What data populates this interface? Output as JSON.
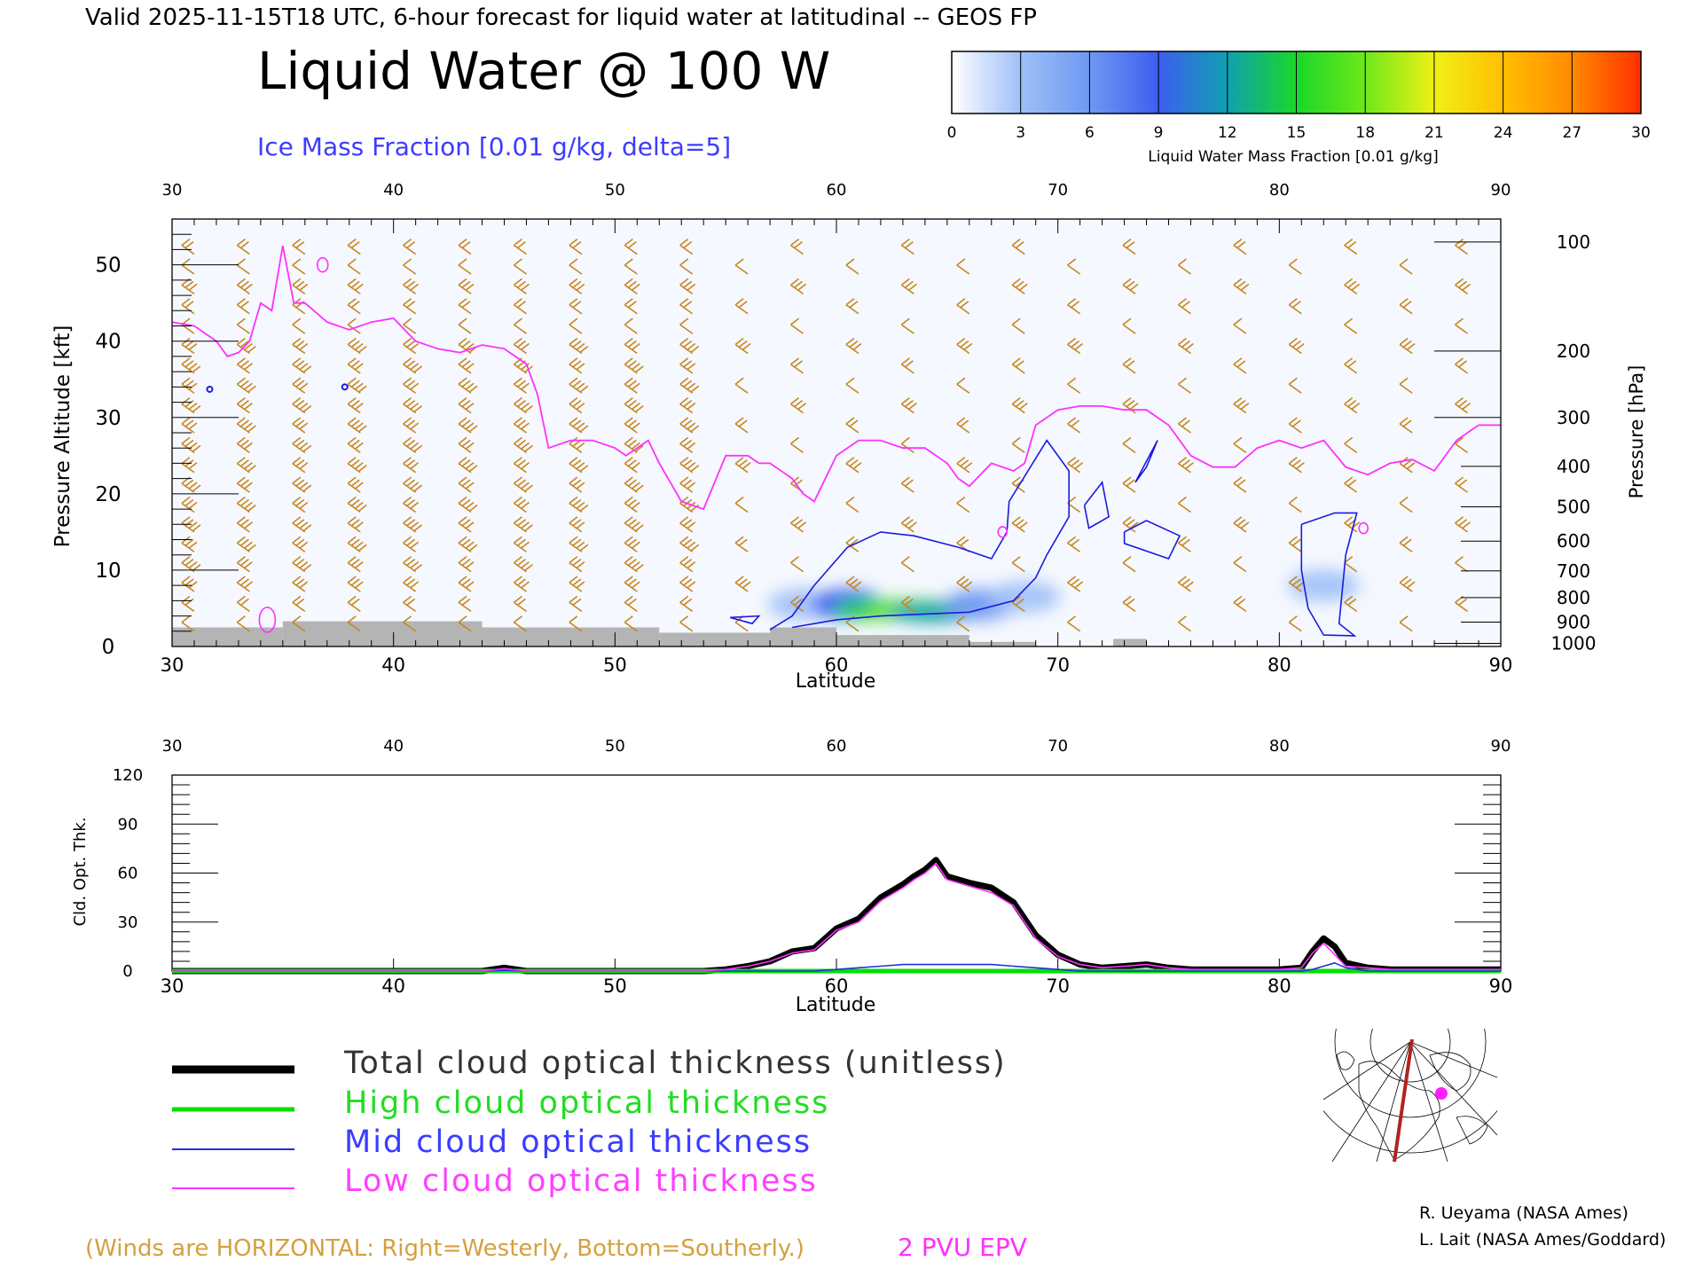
{
  "header": "Valid 2025-11-15T18 UTC, 6-hour forecast for liquid water at latitudinal -- GEOS FP",
  "title": "Liquid Water @ 100 W",
  "subtitle": "Ice Mass Fraction [0.01 g/kg, delta=5]",
  "colorbar": {
    "ticks": [
      "0",
      "3",
      "6",
      "9",
      "12",
      "15",
      "18",
      "21",
      "24",
      "27",
      "30"
    ],
    "colors": [
      "#ffffff",
      "#9ec0f8",
      "#6f98f2",
      "#3c5ef0",
      "#10a0b0",
      "#18d828",
      "#6ee81a",
      "#f0f016",
      "#ffc000",
      "#ff8a00",
      "#ff3000"
    ],
    "label": "Liquid Water Mass Fraction [0.01 g/kg]"
  },
  "chart_data": [
    {
      "type": "heatmap",
      "x_ticks_top": [
        "30",
        "40",
        "50",
        "60",
        "70",
        "80",
        "90"
      ],
      "x_ticks_bottom": [
        "30",
        "40",
        "50",
        "60",
        "70",
        "80",
        "90"
      ],
      "xlabel": "Latitude",
      "ylabel": "Pressure Altitude [kft]",
      "y_ticks": [
        "0",
        "10",
        "20",
        "30",
        "40",
        "50"
      ],
      "ylim": [
        0,
        56
      ],
      "xlim": [
        30,
        90
      ],
      "ylabel_right": "Pressure [hPa]",
      "pressure_ticks": [
        "100",
        "200",
        "300",
        "400",
        "500",
        "600",
        "700",
        "800",
        "900",
        "1000"
      ],
      "pressure_tick_altitudes_kft": [
        53,
        38.7,
        30,
        23.6,
        18.3,
        13.8,
        9.9,
        6.4,
        3.2,
        0.4
      ],
      "liquid_water_cells": [
        {
          "lat": 58.5,
          "alt": 5.5,
          "value": 3
        },
        {
          "lat": 60.5,
          "alt": 5.5,
          "value": 9
        },
        {
          "lat": 62.0,
          "alt": 4.8,
          "value": 15
        },
        {
          "lat": 63.5,
          "alt": 4.8,
          "value": 17
        },
        {
          "lat": 64.5,
          "alt": 4.5,
          "value": 12
        },
        {
          "lat": 66.5,
          "alt": 5.5,
          "value": 6
        },
        {
          "lat": 68.5,
          "alt": 6.5,
          "value": 3
        },
        {
          "lat": 82.0,
          "alt": 8.0,
          "value": 3
        }
      ],
      "epv_2pvu_line": {
        "x": [
          30,
          31,
          32,
          32.5,
          33,
          33.5,
          34,
          34.5,
          35,
          35.5,
          36,
          37,
          38,
          39,
          40,
          41,
          42,
          43,
          44,
          45,
          46,
          46.5,
          47,
          48,
          49,
          50,
          50.5,
          51,
          51.5,
          52,
          53,
          54,
          55,
          56,
          56.5,
          57,
          58,
          58.5,
          59,
          60,
          61,
          62,
          63,
          64,
          65,
          65.5,
          66,
          67,
          68,
          68.5,
          69,
          70,
          71,
          72,
          73,
          74,
          75,
          76,
          77,
          78,
          79,
          80,
          81,
          82,
          83,
          84,
          85,
          86,
          87,
          88,
          89,
          90
        ],
        "y": [
          42.5,
          42,
          40,
          38,
          38.5,
          40,
          45,
          44,
          52.5,
          45,
          45,
          42.5,
          41.5,
          42.5,
          43,
          40,
          39,
          38.5,
          39.5,
          39,
          37,
          33,
          26,
          27,
          27,
          26,
          25,
          26,
          27,
          24,
          19,
          18,
          25,
          25,
          24,
          24,
          22,
          20,
          19,
          25,
          27,
          27,
          26,
          26,
          24,
          22,
          21,
          24,
          23,
          24,
          29,
          31,
          31.5,
          31.5,
          31,
          31,
          29,
          25,
          23.5,
          23.5,
          26,
          27,
          26,
          27,
          23.5,
          22.5,
          24,
          24.5,
          23,
          27,
          29,
          29,
          32
        ]
      },
      "mid_cloud_contour_note": "Ice mass fraction contours at 0.01 g/kg",
      "terrain_alt_kft": [
        {
          "from": 30,
          "to": 35,
          "alt": 2.5
        },
        {
          "from": 35,
          "to": 44,
          "alt": 3.3
        },
        {
          "from": 44,
          "to": 52,
          "alt": 2.5
        },
        {
          "from": 52,
          "to": 57,
          "alt": 1.8
        },
        {
          "from": 57,
          "to": 60,
          "alt": 2.5
        },
        {
          "from": 60,
          "to": 66,
          "alt": 1.5
        },
        {
          "from": 66,
          "to": 69,
          "alt": 0.6
        },
        {
          "from": 72.5,
          "to": 74,
          "alt": 1.0
        }
      ],
      "winds_note": "(Winds are HORIZONTAL: Right=Westerly, Bottom=Southerly.)",
      "epv_label": "2 PVU EPV"
    },
    {
      "type": "line",
      "xlabel": "Latitude",
      "ylabel": "Cld. Opt. Thk.",
      "xlim": [
        30,
        90
      ],
      "ylim": [
        0,
        120
      ],
      "x_ticks_top": [
        "30",
        "40",
        "50",
        "60",
        "70",
        "80",
        "90"
      ],
      "x_ticks_bottom": [
        "30",
        "40",
        "50",
        "60",
        "70",
        "80",
        "90"
      ],
      "y_ticks": [
        "0",
        "30",
        "60",
        "90",
        "120"
      ],
      "x": [
        30,
        35,
        40,
        44,
        45,
        46,
        50,
        54,
        55,
        56,
        57,
        58,
        59,
        60,
        61,
        62,
        63,
        63.5,
        64,
        64.5,
        65,
        66,
        67,
        68,
        69,
        70,
        71,
        72,
        73,
        74,
        75,
        76,
        80,
        81,
        81.5,
        82,
        82.5,
        83,
        84,
        85,
        90
      ],
      "series": [
        {
          "name": "Total cloud optical thickness (unitless)",
          "color": "#000000",
          "values": [
            0,
            0,
            0,
            0,
            2,
            0,
            0,
            0,
            1,
            3,
            6,
            12,
            14,
            26,
            32,
            45,
            53,
            58,
            62,
            68,
            58,
            54,
            51,
            42,
            22,
            10,
            4,
            2,
            3,
            4,
            2,
            1,
            1,
            2,
            12,
            20,
            15,
            5,
            2,
            1,
            1
          ]
        },
        {
          "name": "High cloud optical thickness",
          "color": "#00e000",
          "values": [
            0,
            0,
            0,
            0,
            0,
            0,
            0,
            0,
            0,
            0,
            0,
            0,
            0,
            0,
            0,
            0,
            0,
            0,
            0,
            0,
            0,
            0,
            0,
            0,
            0,
            0,
            0,
            0,
            0,
            0,
            0,
            0,
            0,
            0,
            0,
            0,
            0,
            0,
            0,
            0,
            0
          ]
        },
        {
          "name": "Mid cloud optical thickness",
          "color": "#2030e0",
          "values": [
            0,
            0,
            0,
            0,
            0.5,
            0,
            0,
            0,
            0,
            0,
            0,
            0,
            0,
            1,
            2,
            3,
            4,
            4,
            4,
            4,
            4,
            4,
            4,
            3,
            2,
            1,
            0,
            0,
            0,
            0,
            0,
            0,
            0,
            0,
            1,
            3,
            5,
            2,
            0,
            0,
            0
          ]
        },
        {
          "name": "Low cloud optical thickness",
          "color": "#ff30ff",
          "values": [
            0,
            0,
            0,
            0,
            1.5,
            0,
            0,
            0,
            1,
            3,
            6,
            11,
            13,
            25,
            30,
            43,
            51,
            56,
            60,
            66,
            56,
            52,
            48,
            40,
            20,
            9,
            4,
            2,
            3,
            4,
            2,
            1,
            1,
            2,
            11,
            17,
            10,
            3,
            2,
            1,
            1
          ]
        }
      ]
    }
  ],
  "legend": [
    {
      "label": "Total cloud optical thickness (unitless)",
      "color": "#000000"
    },
    {
      "label": "High cloud optical thickness",
      "color": "#00e000"
    },
    {
      "label": "Mid cloud optical thickness",
      "color": "#2030e0"
    },
    {
      "label": "Low cloud optical thickness",
      "color": "#ff30ff"
    }
  ],
  "credits": [
    "R. Ueyama (NASA Ames)",
    "L. Lait (NASA Ames/Goddard)"
  ],
  "colors": {
    "wind": "#c8861e",
    "epv": "#ff30ff",
    "ice": "#1a1ae0",
    "terrain": "#b4b4b4"
  }
}
